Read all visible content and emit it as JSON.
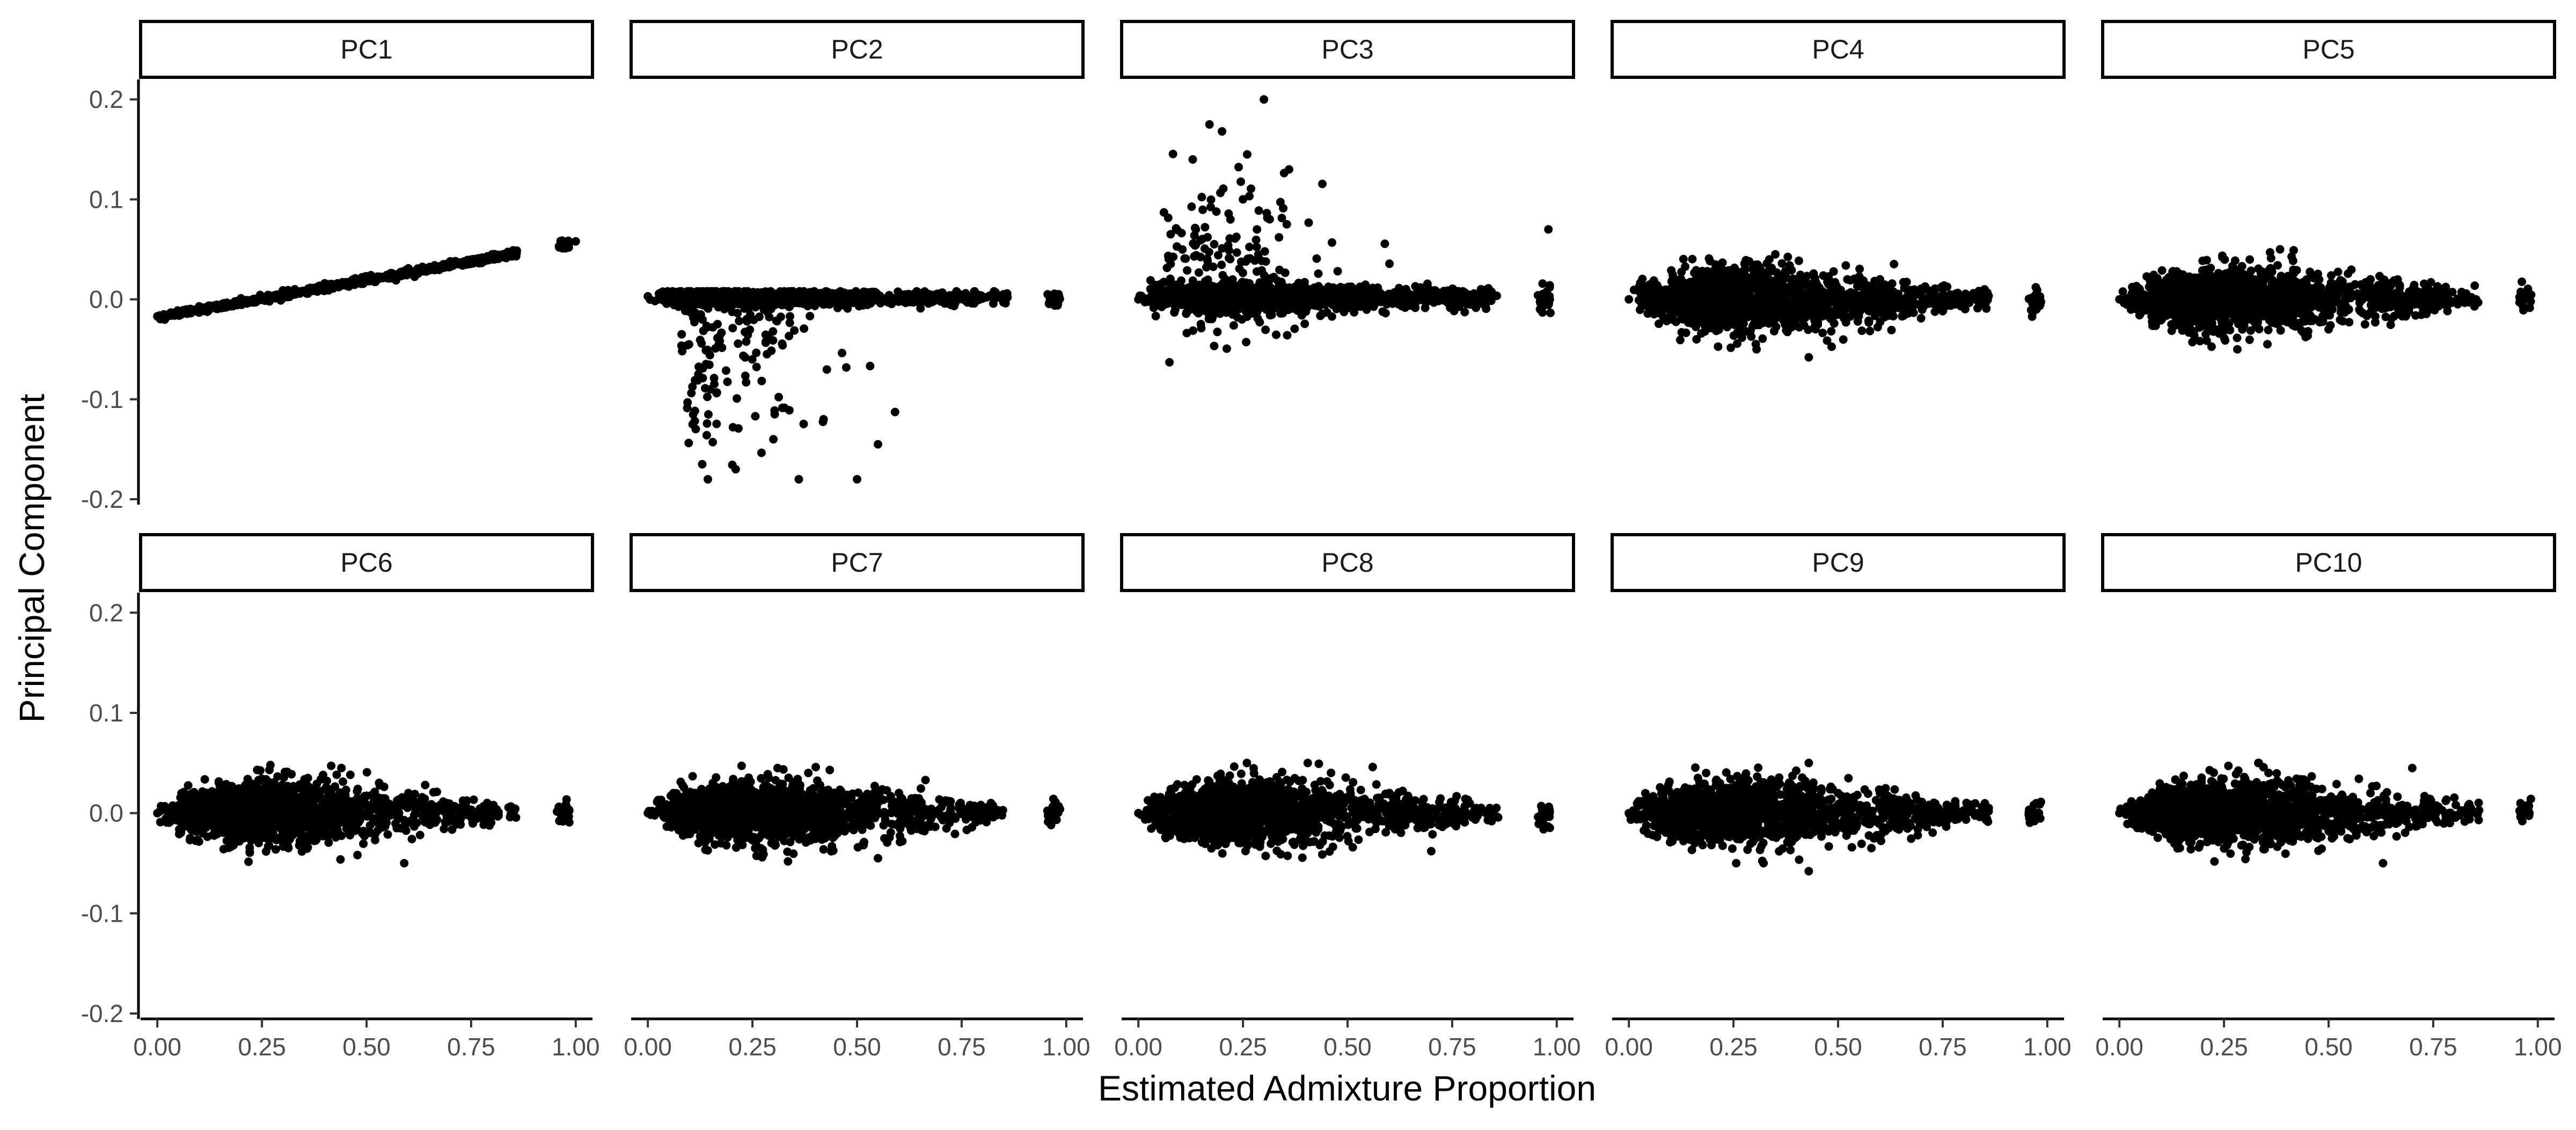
{
  "chart_data": {
    "type": "scatter",
    "xlabel": "Estimated Admixture Proportion",
    "ylabel": "Principal Component",
    "xlim": [
      -0.04,
      1.04
    ],
    "ylim": [
      -0.2,
      0.22
    ],
    "x_ticks": [
      0.0,
      0.25,
      0.5,
      0.75,
      1.0
    ],
    "x_tick_labels": [
      "0.00",
      "0.25",
      "0.50",
      "0.75",
      "1.00"
    ],
    "y_ticks": [
      -0.2,
      -0.1,
      0.0,
      0.1,
      0.2
    ],
    "y_tick_labels": [
      "-0.2",
      "-0.1",
      "0.0",
      "0.1",
      "0.2"
    ],
    "grid": false,
    "point_color": "#000000",
    "facet_layout": {
      "rows": 2,
      "cols": 5
    },
    "panels": [
      {
        "label": "PC1",
        "pattern": "linear",
        "points": [
          [
            0.0,
            -0.017
          ],
          [
            0.05,
            -0.012
          ],
          [
            0.1,
            -0.007
          ],
          [
            0.2,
            0.001
          ],
          [
            0.3,
            0.009
          ],
          [
            0.4,
            0.016
          ],
          [
            0.5,
            0.023
          ],
          [
            0.6,
            0.031
          ],
          [
            0.7,
            0.038
          ],
          [
            0.8,
            0.045
          ],
          [
            0.85,
            0.049
          ],
          [
            0.96,
            0.053
          ],
          [
            0.98,
            0.056
          ],
          [
            1.0,
            0.058
          ]
        ]
      },
      {
        "label": "PC2",
        "pattern": "neg-outliers",
        "points": [
          [
            0.0,
            0.003
          ],
          [
            0.2,
            0.0
          ],
          [
            0.4,
            0.001
          ],
          [
            0.6,
            0.002
          ],
          [
            0.85,
            0.005
          ],
          [
            0.13,
            -0.165
          ],
          [
            0.21,
            -0.17
          ],
          [
            0.5,
            -0.18
          ],
          [
            0.42,
            -0.12
          ],
          [
            0.3,
            -0.14
          ],
          [
            0.55,
            -0.145
          ],
          [
            0.15,
            -0.09
          ],
          [
            0.98,
            -0.005
          ]
        ]
      },
      {
        "label": "PC3",
        "pattern": "pos-outliers",
        "points": [
          [
            0.0,
            0.0
          ],
          [
            0.2,
            0.005
          ],
          [
            0.4,
            0.002
          ],
          [
            0.6,
            0.001
          ],
          [
            0.8,
            0.003
          ],
          [
            0.3,
            0.2
          ],
          [
            0.17,
            0.175
          ],
          [
            0.2,
            0.168
          ],
          [
            0.13,
            0.14
          ],
          [
            0.26,
            0.145
          ],
          [
            0.36,
            0.13
          ],
          [
            0.25,
            0.1
          ],
          [
            0.22,
            0.08
          ],
          [
            0.98,
            0.07
          ]
        ]
      },
      {
        "label": "PC4",
        "pattern": "blob",
        "points": [
          [
            0.0,
            0.0
          ],
          [
            0.2,
            0.01
          ],
          [
            0.35,
            0.045
          ],
          [
            0.43,
            -0.058
          ],
          [
            0.6,
            0.02
          ],
          [
            0.75,
            0.0
          ],
          [
            0.85,
            0.01
          ],
          [
            0.98,
            0.0
          ]
        ]
      },
      {
        "label": "PC5",
        "pattern": "blob",
        "points": [
          [
            0.0,
            0.0
          ],
          [
            0.2,
            0.01
          ],
          [
            0.36,
            0.047
          ],
          [
            0.5,
            -0.03
          ],
          [
            0.6,
            0.02
          ],
          [
            0.75,
            0.005
          ],
          [
            0.85,
            0.0
          ],
          [
            0.98,
            0.0
          ]
        ]
      },
      {
        "label": "PC6",
        "pattern": "blob",
        "points": [
          [
            0.0,
            0.0
          ],
          [
            0.2,
            0.01
          ],
          [
            0.44,
            0.045
          ],
          [
            0.59,
            -0.05
          ],
          [
            0.6,
            0.02
          ],
          [
            0.75,
            0.0
          ],
          [
            0.85,
            0.005
          ],
          [
            0.98,
            0.005
          ]
        ]
      },
      {
        "label": "PC7",
        "pattern": "blob",
        "points": [
          [
            0.0,
            0.0
          ],
          [
            0.2,
            0.01
          ],
          [
            0.31,
            0.045
          ],
          [
            0.55,
            -0.045
          ],
          [
            0.6,
            0.02
          ],
          [
            0.75,
            0.0
          ],
          [
            0.82,
            0.01
          ],
          [
            0.98,
            0.005
          ]
        ]
      },
      {
        "label": "PC8",
        "pattern": "blob",
        "points": [
          [
            0.0,
            0.0
          ],
          [
            0.2,
            0.01
          ],
          [
            0.56,
            0.046
          ],
          [
            0.7,
            -0.038
          ],
          [
            0.6,
            0.02
          ],
          [
            0.75,
            0.0
          ],
          [
            0.84,
            0.005
          ],
          [
            0.98,
            0.0
          ]
        ]
      },
      {
        "label": "PC9",
        "pattern": "blob",
        "points": [
          [
            0.0,
            0.0
          ],
          [
            0.2,
            0.01
          ],
          [
            0.43,
            0.05
          ],
          [
            0.43,
            -0.058
          ],
          [
            0.6,
            0.02
          ],
          [
            0.75,
            0.0
          ],
          [
            0.86,
            0.005
          ],
          [
            0.98,
            0.0
          ]
        ]
      },
      {
        "label": "PC10",
        "pattern": "blob",
        "points": [
          [
            0.0,
            0.0
          ],
          [
            0.2,
            0.01
          ],
          [
            0.7,
            0.045
          ],
          [
            0.63,
            -0.05
          ],
          [
            0.6,
            0.02
          ],
          [
            0.75,
            0.0
          ],
          [
            0.84,
            0.005
          ],
          [
            0.98,
            0.0
          ]
        ]
      }
    ]
  }
}
